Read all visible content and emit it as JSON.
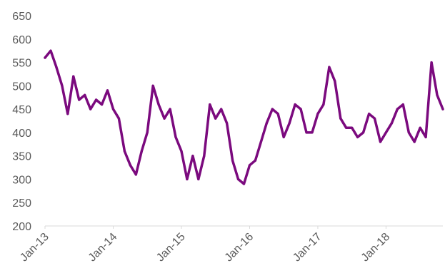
{
  "chart_data": {
    "type": "line",
    "title": "",
    "xlabel": "",
    "ylabel": "",
    "ylim": [
      200,
      650
    ],
    "y_ticks": [
      "650",
      "600",
      "550",
      "500",
      "450",
      "400",
      "350",
      "300",
      "250",
      "200"
    ],
    "y_tick_values": [
      650,
      600,
      550,
      500,
      450,
      400,
      350,
      300,
      250,
      200
    ],
    "x_tick_labels": [
      "Jan-13",
      "Jan-14",
      "Jan-15",
      "Jan-16",
      "Jan-17",
      "Jan-18"
    ],
    "x_tick_values": [
      "2013-01",
      "2014-01",
      "2015-01",
      "2016-01",
      "2017-01",
      "2018-01"
    ],
    "xlim": [
      "2013-01",
      "2018-11"
    ],
    "grid": false,
    "legend": "none",
    "colors": {
      "series": "#7b0a7e",
      "axis": "#d9d9d9",
      "text": "#595959"
    },
    "series": [
      {
        "name": "",
        "x": [
          "2013-01",
          "2013-02",
          "2013-03",
          "2013-04",
          "2013-05",
          "2013-06",
          "2013-07",
          "2013-08",
          "2013-09",
          "2013-10",
          "2013-11",
          "2013-12",
          "2014-01",
          "2014-02",
          "2014-03",
          "2014-04",
          "2014-05",
          "2014-06",
          "2014-07",
          "2014-08",
          "2014-09",
          "2014-10",
          "2014-11",
          "2014-12",
          "2015-01",
          "2015-02",
          "2015-03",
          "2015-04",
          "2015-05",
          "2015-06",
          "2015-07",
          "2015-08",
          "2015-09",
          "2015-10",
          "2015-11",
          "2015-12",
          "2016-01",
          "2016-02",
          "2016-03",
          "2016-04",
          "2016-05",
          "2016-06",
          "2016-07",
          "2016-08",
          "2016-09",
          "2016-10",
          "2016-11",
          "2016-12",
          "2017-01",
          "2017-02",
          "2017-03",
          "2017-04",
          "2017-05",
          "2017-06",
          "2017-07",
          "2017-08",
          "2017-09",
          "2017-10",
          "2017-11",
          "2017-12",
          "2018-01",
          "2018-02",
          "2018-03",
          "2018-04",
          "2018-05",
          "2018-06",
          "2018-07",
          "2018-08",
          "2018-09",
          "2018-10",
          "2018-11"
        ],
        "values": [
          560,
          575,
          540,
          500,
          440,
          520,
          470,
          480,
          450,
          470,
          460,
          490,
          450,
          430,
          360,
          330,
          310,
          360,
          400,
          500,
          460,
          430,
          450,
          390,
          360,
          300,
          350,
          300,
          350,
          460,
          430,
          450,
          420,
          340,
          300,
          290,
          330,
          340,
          380,
          420,
          450,
          440,
          390,
          420,
          460,
          450,
          400,
          400,
          440,
          460,
          540,
          510,
          430,
          410,
          410,
          390,
          400,
          440,
          430,
          380,
          400,
          420,
          450,
          460,
          400,
          380,
          410,
          390,
          550,
          480,
          450
        ]
      }
    ]
  }
}
